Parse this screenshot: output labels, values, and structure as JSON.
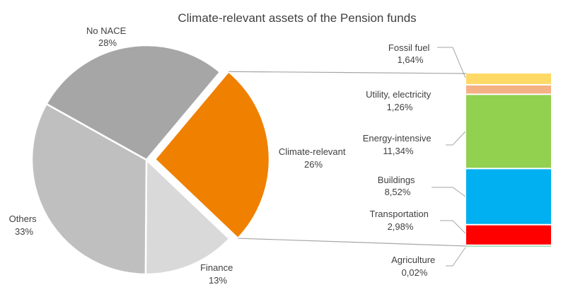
{
  "chart_data": {
    "type": "pie",
    "title": "Climate-relevant assets of the Pension funds",
    "pie": {
      "slices": [
        {
          "name": "Climate-relevant",
          "pct_label": "26%",
          "value": 26,
          "color": "#F08000"
        },
        {
          "name": "Finance",
          "pct_label": "13%",
          "value": 13,
          "color": "#D9D9D9"
        },
        {
          "name": "Others",
          "pct_label": "33%",
          "value": 33,
          "color": "#BFBFBF"
        },
        {
          "name": "No NACE",
          "pct_label": "28%",
          "value": 28,
          "color": "#A6A6A6"
        }
      ]
    },
    "breakdown": {
      "type": "stacked_bar",
      "parent": "Climate-relevant",
      "segments": [
        {
          "name": "Fossil fuel",
          "pct_label": "1,64%",
          "value": 1.64,
          "color": "#FFD966"
        },
        {
          "name": "Utility, electricity",
          "pct_label": "1,26%",
          "value": 1.26,
          "color": "#F4B183"
        },
        {
          "name": "Energy-intensive",
          "pct_label": "11,34%",
          "value": 11.34,
          "color": "#92D050"
        },
        {
          "name": "Buildings",
          "pct_label": "8,52%",
          "value": 8.52,
          "color": "#00B0F0"
        },
        {
          "name": "Transportation",
          "pct_label": "2,98%",
          "value": 2.98,
          "color": "#FF0000"
        },
        {
          "name": "Agriculture",
          "pct_label": "0,02%",
          "value": 0.02,
          "color": "#00B050"
        }
      ]
    }
  }
}
